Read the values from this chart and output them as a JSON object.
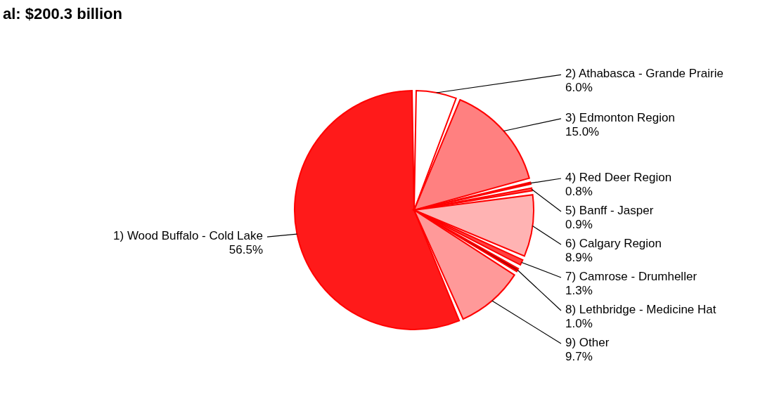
{
  "chart_data": {
    "type": "pie",
    "title": "al: $200.3 billion",
    "categories": [
      "1)  Wood Buffalo - Cold Lake",
      "2)  Athabasca - Grande Prairie",
      "3)  Edmonton Region",
      "4)  Red Deer Region",
      "5)  Banff - Jasper",
      "6)  Calgary Region",
      "7)  Camrose - Drumheller",
      "8)  Lethbridge - Medicine Hat",
      "9)  Other"
    ],
    "values": [
      56.5,
      6.0,
      15.0,
      0.8,
      0.9,
      8.9,
      1.3,
      1.0,
      9.7
    ],
    "value_labels": [
      "56.5%",
      "6.0%",
      "15.0%",
      "0.8%",
      "0.9%",
      "8.9%",
      "1.3%",
      "1.0%",
      "9.7%"
    ],
    "colors": [
      "#ff1a1a",
      "#ffffff",
      "#ff8080",
      "#d40000",
      "#ff6666",
      "#ffb3b3",
      "#ff4040",
      "#b30000",
      "#ff9999"
    ]
  }
}
